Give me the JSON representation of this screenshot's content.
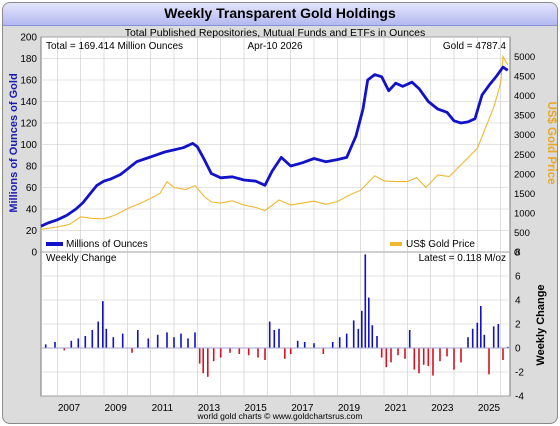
{
  "title": "Weekly Transparent Gold Holdings",
  "subtitle": "Total Published Repositories, Mutual Funds and ETFs in Ounces",
  "info": {
    "total": "Total = 169.414 Million Ounces",
    "date": "Apr-10  2026",
    "gold": "Gold = 4787.4"
  },
  "latest": "Latest = 0.118 M/oz",
  "footer": "world gold charts © www.goldchartsrus.com",
  "colors": {
    "holdings": "#1212c8",
    "price": "#f0b830",
    "change_up": "#1010c8",
    "change_down": "#d81020",
    "ylabel_left": "#1a1ab4",
    "ylabel_right": "#e8a826"
  },
  "chart_data": [
    {
      "type": "line",
      "ylabel": "Millions of Ounces of Gold",
      "y2label": "US$ Gold Price",
      "ylim": [
        0,
        200
      ],
      "y2lim": [
        0,
        5500
      ],
      "yticks": [
        0,
        20,
        40,
        60,
        80,
        100,
        120,
        140,
        160,
        180,
        200
      ],
      "y2ticks": [
        0,
        500,
        1000,
        1500,
        2000,
        2500,
        3000,
        3500,
        4000,
        4500,
        5000
      ],
      "xlim": [
        2006.3,
        2026.4
      ],
      "grid": true,
      "legend_placement": "bottom",
      "series": [
        {
          "name": "Millions of Ounces",
          "axis": "left",
          "x": [
            2006.3,
            2006.6,
            2007.0,
            2007.4,
            2007.8,
            2008.1,
            2008.4,
            2008.7,
            2009.0,
            2009.3,
            2009.7,
            2010.0,
            2010.4,
            2010.8,
            2011.2,
            2011.6,
            2012.0,
            2012.4,
            2012.8,
            2013.0,
            2013.3,
            2013.6,
            2014.0,
            2014.5,
            2015.0,
            2015.5,
            2015.9,
            2016.2,
            2016.6,
            2017.0,
            2017.5,
            2018.0,
            2018.5,
            2019.0,
            2019.4,
            2019.8,
            2020.1,
            2020.3,
            2020.6,
            2020.9,
            2021.2,
            2021.5,
            2021.8,
            2022.2,
            2022.5,
            2022.9,
            2023.3,
            2023.7,
            2024.0,
            2024.3,
            2024.6,
            2024.9,
            2025.2,
            2025.5,
            2025.8,
            2026.1,
            2026.3
          ],
          "values": [
            24,
            27,
            30,
            34,
            40,
            46,
            54,
            62,
            66,
            68,
            72,
            77,
            84,
            87,
            90,
            93,
            95,
            97,
            101,
            98,
            86,
            73,
            69,
            70,
            67,
            66,
            62,
            75,
            88,
            80,
            83,
            87,
            84,
            86,
            88,
            108,
            133,
            160,
            165,
            163,
            150,
            157,
            154,
            158,
            152,
            140,
            133,
            130,
            122,
            120,
            121,
            124,
            146,
            155,
            163,
            172,
            169
          ]
        },
        {
          "name": "US$ Gold Price",
          "axis": "right",
          "x": [
            2006.3,
            2007.0,
            2007.5,
            2008.0,
            2008.5,
            2009.0,
            2009.5,
            2010.0,
            2010.5,
            2011.0,
            2011.4,
            2011.7,
            2012.0,
            2012.5,
            2012.9,
            2013.3,
            2013.6,
            2014.0,
            2014.5,
            2015.0,
            2015.5,
            2015.9,
            2016.5,
            2017.0,
            2017.5,
            2018.0,
            2018.5,
            2019.0,
            2019.5,
            2020.0,
            2020.6,
            2021.0,
            2021.5,
            2022.0,
            2022.4,
            2022.8,
            2023.3,
            2023.8,
            2024.0,
            2024.5,
            2025.0,
            2025.3,
            2025.7,
            2025.9,
            2026.0,
            2026.1,
            2026.3
          ],
          "values": [
            580,
            640,
            700,
            900,
            860,
            850,
            950,
            1110,
            1230,
            1370,
            1500,
            1800,
            1650,
            1600,
            1700,
            1420,
            1280,
            1250,
            1310,
            1200,
            1140,
            1060,
            1330,
            1200,
            1250,
            1300,
            1220,
            1290,
            1450,
            1580,
            1950,
            1820,
            1800,
            1800,
            1900,
            1650,
            1970,
            1930,
            2050,
            2350,
            2650,
            3100,
            3700,
            4100,
            4350,
            5000,
            4787
          ]
        }
      ]
    },
    {
      "type": "bar",
      "title": "Weekly Change",
      "ylabel": "Weekly Change",
      "ylim": [
        -4,
        8
      ],
      "yticks": [
        -4,
        -2,
        0,
        2,
        4,
        6,
        8
      ],
      "xlim": [
        2006.3,
        2026.4
      ],
      "xticks": [
        "2007",
        "2009",
        "2011",
        "2013",
        "2015",
        "2017",
        "2019",
        "2021",
        "2023",
        "2025"
      ],
      "x": [
        2006.5,
        2006.9,
        2007.3,
        2007.6,
        2007.9,
        2008.2,
        2008.5,
        2008.75,
        2008.95,
        2009.1,
        2009.4,
        2009.8,
        2010.2,
        2010.45,
        2010.9,
        2011.3,
        2011.7,
        2012.0,
        2012.3,
        2012.6,
        2012.9,
        2013.1,
        2013.25,
        2013.45,
        2013.7,
        2014.0,
        2014.4,
        2014.8,
        2015.2,
        2015.6,
        2015.9,
        2016.1,
        2016.3,
        2016.5,
        2016.75,
        2017.0,
        2017.3,
        2017.6,
        2018.0,
        2018.4,
        2018.8,
        2019.1,
        2019.4,
        2019.7,
        2019.9,
        2020.05,
        2020.2,
        2020.35,
        2020.5,
        2020.7,
        2020.9,
        2021.1,
        2021.3,
        2021.6,
        2021.9,
        2022.1,
        2022.3,
        2022.5,
        2022.7,
        2022.9,
        2023.1,
        2023.4,
        2023.7,
        2024.0,
        2024.3,
        2024.6,
        2024.8,
        2025.0,
        2025.15,
        2025.3,
        2025.5,
        2025.7,
        2025.9,
        2026.1,
        2026.3
      ],
      "values": [
        0.3,
        0.5,
        -0.2,
        0.6,
        0.8,
        1.0,
        1.5,
        2.2,
        3.9,
        1.6,
        0.9,
        1.2,
        -0.4,
        1.5,
        0.8,
        1.1,
        1.3,
        0.9,
        1.2,
        0.8,
        1.3,
        -1.3,
        -2.1,
        -2.4,
        -1.1,
        -0.8,
        -0.4,
        -0.5,
        -0.6,
        -0.8,
        -1.0,
        2.2,
        1.5,
        1.6,
        -0.9,
        -0.5,
        0.6,
        0.5,
        0.4,
        -0.5,
        0.5,
        0.9,
        1.2,
        2.3,
        1.6,
        3.1,
        7.8,
        4.2,
        1.9,
        1.0,
        -0.8,
        -1.6,
        -1.2,
        -0.6,
        -0.9,
        1.5,
        -1.8,
        -2.1,
        -1.4,
        -1.5,
        -2.3,
        -1.1,
        -0.7,
        -1.8,
        -1.2,
        0.9,
        1.6,
        2.1,
        3.5,
        1.1,
        -2.2,
        1.8,
        2.0,
        -1.0,
        0.1
      ]
    }
  ]
}
